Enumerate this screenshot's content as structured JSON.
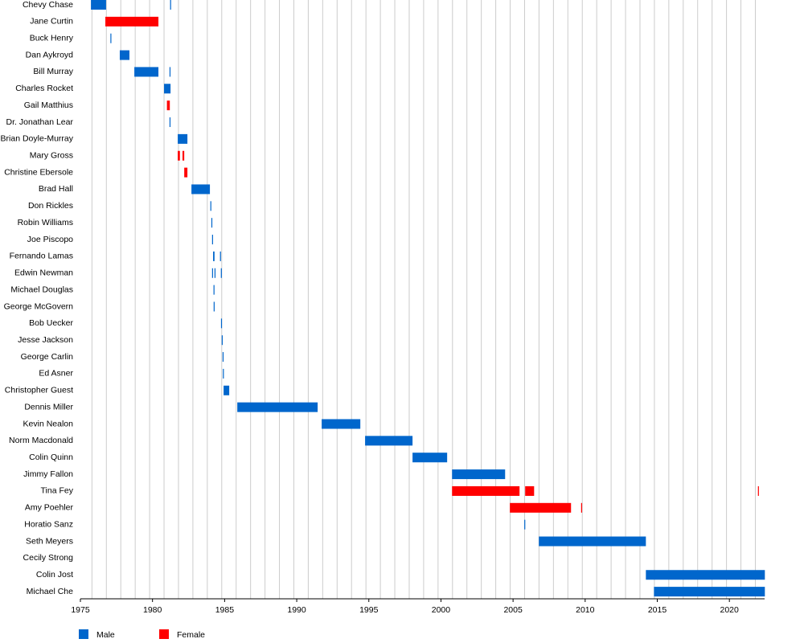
{
  "chart_data": {
    "type": "timeline",
    "categories": [
      "Chevy Chase",
      "Jane Curtin",
      "Buck Henry",
      "Dan Aykroyd",
      "Bill Murray",
      "Charles Rocket",
      "Gail Matthius",
      "Dr. Jonathan Lear",
      "Brian Doyle-Murray",
      "Mary Gross",
      "Christine Ebersole",
      "Brad Hall",
      "Don Rickles",
      "Robin Williams",
      "Joe Piscopo",
      "Fernando Lamas",
      "Edwin Newman",
      "Michael Douglas",
      "George McGovern",
      "Bob Uecker",
      "Jesse Jackson",
      "George Carlin",
      "Ed Asner",
      "Christopher Guest",
      "Dennis Miller",
      "Kevin Nealon",
      "Norm Macdonald",
      "Colin Quinn",
      "Jimmy Fallon",
      "Tina Fey",
      "Amy Poehler",
      "Horatio Sanz",
      "Seth Meyers",
      "Cecily Strong",
      "Colin Jost",
      "Michael Che"
    ],
    "series": [
      {
        "name": "Male",
        "color": "#0066cc",
        "bars": [
          {
            "category": "Chevy Chase",
            "start": 1975.73,
            "end": 1976.78
          },
          {
            "category": "Chevy Chase",
            "start": 1981.22,
            "end": 1981.27
          },
          {
            "category": "Buck Henry",
            "start": 1977.08,
            "end": 1977.13
          },
          {
            "category": "Dan Aykroyd",
            "start": 1977.73,
            "end": 1978.4
          },
          {
            "category": "Bill Murray",
            "start": 1978.74,
            "end": 1980.41
          },
          {
            "category": "Bill Murray",
            "start": 1981.18,
            "end": 1981.23
          },
          {
            "category": "Charles Rocket",
            "start": 1980.8,
            "end": 1981.25
          },
          {
            "category": "Dr. Jonathan Lear",
            "start": 1981.18,
            "end": 1981.23
          },
          {
            "category": "Brian Doyle-Murray",
            "start": 1981.75,
            "end": 1982.42
          },
          {
            "category": "Brad Hall",
            "start": 1982.7,
            "end": 1983.98
          },
          {
            "category": "Don Rickles",
            "start": 1984.01,
            "end": 1984.06
          },
          {
            "category": "Robin Williams",
            "start": 1984.08,
            "end": 1984.13
          },
          {
            "category": "Joe Piscopo",
            "start": 1984.13,
            "end": 1984.18
          },
          {
            "category": "Fernando Lamas",
            "start": 1984.2,
            "end": 1984.3
          },
          {
            "category": "Fernando Lamas",
            "start": 1984.68,
            "end": 1984.73
          },
          {
            "category": "Edwin Newman",
            "start": 1984.13,
            "end": 1984.18
          },
          {
            "category": "Edwin Newman",
            "start": 1984.3,
            "end": 1984.35
          },
          {
            "category": "Edwin Newman",
            "start": 1984.74,
            "end": 1984.79
          },
          {
            "category": "Michael Douglas",
            "start": 1984.23,
            "end": 1984.28
          },
          {
            "category": "George McGovern",
            "start": 1984.24,
            "end": 1984.29
          },
          {
            "category": "Bob Uecker",
            "start": 1984.75,
            "end": 1984.8
          },
          {
            "category": "Jesse Jackson",
            "start": 1984.8,
            "end": 1984.85
          },
          {
            "category": "George Carlin",
            "start": 1984.86,
            "end": 1984.91
          },
          {
            "category": "Ed Asner",
            "start": 1984.88,
            "end": 1984.93
          },
          {
            "category": "Christopher Guest",
            "start": 1984.93,
            "end": 1985.32
          },
          {
            "category": "Dennis Miller",
            "start": 1985.88,
            "end": 1991.45
          },
          {
            "category": "Kevin Nealon",
            "start": 1991.73,
            "end": 1994.41
          },
          {
            "category": "Norm Macdonald",
            "start": 1994.74,
            "end": 1998.03
          },
          {
            "category": "Colin Quinn",
            "start": 1998.03,
            "end": 2000.43
          },
          {
            "category": "Jimmy Fallon",
            "start": 2000.77,
            "end": 2004.45
          },
          {
            "category": "Horatio Sanz",
            "start": 2005.78,
            "end": 2005.83
          },
          {
            "category": "Seth Meyers",
            "start": 2006.79,
            "end": 2014.21
          },
          {
            "category": "Colin Jost",
            "start": 2014.21,
            "end": 2022.46
          },
          {
            "category": "Michael Che",
            "start": 2014.77,
            "end": 2022.46
          }
        ]
      },
      {
        "name": "Female",
        "color": "#ff0000",
        "bars": [
          {
            "category": "Jane Curtin",
            "start": 1976.73,
            "end": 1980.41
          },
          {
            "category": "Gail Matthius",
            "start": 1981.0,
            "end": 1981.2
          },
          {
            "category": "Mary Gross",
            "start": 1981.75,
            "end": 1981.9
          },
          {
            "category": "Mary Gross",
            "start": 1982.08,
            "end": 1982.2
          },
          {
            "category": "Christine Ebersole",
            "start": 1982.2,
            "end": 1982.42
          },
          {
            "category": "Tina Fey",
            "start": 2000.77,
            "end": 2005.45
          },
          {
            "category": "Tina Fey",
            "start": 2005.84,
            "end": 2006.46
          },
          {
            "category": "Tina Fey",
            "start": 2021.98,
            "end": 2022.04
          },
          {
            "category": "Amy Poehler",
            "start": 2004.78,
            "end": 2009.02
          },
          {
            "category": "Amy Poehler",
            "start": 2009.72,
            "end": 2009.78
          }
        ]
      }
    ],
    "xlim": [
      1975,
      2023
    ],
    "xticks": [
      1975,
      1980,
      1985,
      1990,
      1995,
      2000,
      2005,
      2010,
      2015,
      2020
    ],
    "season_starts": [
      1975.8,
      1976.8,
      1977.8,
      1978.8,
      1979.8,
      1980.8,
      1981.8,
      1982.8,
      1983.8,
      1984.8,
      1985.8,
      1986.8,
      1987.8,
      1988.8,
      1989.8,
      1990.8,
      1991.8,
      1992.8,
      1993.8,
      1994.8,
      1995.8,
      1996.8,
      1997.8,
      1998.8,
      1999.8,
      2000.8,
      2001.8,
      2002.8,
      2003.8,
      2004.8,
      2005.8,
      2006.8,
      2007.8,
      2008.8,
      2009.8,
      2010.8,
      2011.8,
      2012.8,
      2013.8,
      2014.8,
      2015.8,
      2016.8,
      2017.8,
      2018.8,
      2019.8,
      2020.8,
      2021.8
    ],
    "legend": "bottom-left"
  }
}
